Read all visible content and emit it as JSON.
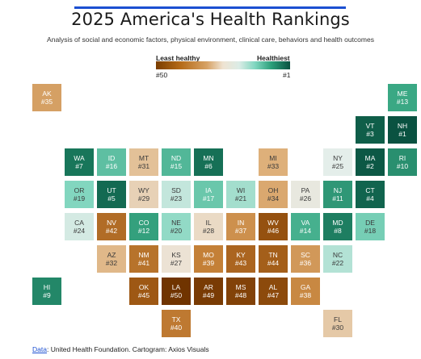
{
  "title": "2025 America's Health Rankings",
  "subtitle": "Analysis of social and economic factors, physical environment, clinical care, behaviors and health outcomes",
  "legend": {
    "left_label": "Least healthy",
    "right_label": "Healthiest",
    "left_rank": "#50",
    "right_rank": "#1"
  },
  "states": [
    {
      "abbr": "AK",
      "rank": "#35",
      "rank_value": 35,
      "row": 0,
      "col": 0
    },
    {
      "abbr": "ME",
      "rank": "#13",
      "rank_value": 13,
      "row": 0,
      "col": 11
    },
    {
      "abbr": "VT",
      "rank": "#3",
      "rank_value": 3,
      "row": 1,
      "col": 10
    },
    {
      "abbr": "NH",
      "rank": "#1",
      "rank_value": 1,
      "row": 1,
      "col": 11
    },
    {
      "abbr": "WA",
      "rank": "#7",
      "rank_value": 7,
      "row": 2,
      "col": 1
    },
    {
      "abbr": "ID",
      "rank": "#16",
      "rank_value": 16,
      "row": 2,
      "col": 2
    },
    {
      "abbr": "MT",
      "rank": "#31",
      "rank_value": 31,
      "row": 2,
      "col": 3
    },
    {
      "abbr": "ND",
      "rank": "#15",
      "rank_value": 15,
      "row": 2,
      "col": 4
    },
    {
      "abbr": "MN",
      "rank": "#6",
      "rank_value": 6,
      "row": 2,
      "col": 5
    },
    {
      "abbr": "MI",
      "rank": "#33",
      "rank_value": 33,
      "row": 2,
      "col": 7
    },
    {
      "abbr": "NY",
      "rank": "#25",
      "rank_value": 25,
      "row": 2,
      "col": 9
    },
    {
      "abbr": "MA",
      "rank": "#2",
      "rank_value": 2,
      "row": 2,
      "col": 10
    },
    {
      "abbr": "RI",
      "rank": "#10",
      "rank_value": 10,
      "row": 2,
      "col": 11
    },
    {
      "abbr": "OR",
      "rank": "#19",
      "rank_value": 19,
      "row": 3,
      "col": 1
    },
    {
      "abbr": "UT",
      "rank": "#5",
      "rank_value": 5,
      "row": 3,
      "col": 2
    },
    {
      "abbr": "WY",
      "rank": "#29",
      "rank_value": 29,
      "row": 3,
      "col": 3
    },
    {
      "abbr": "SD",
      "rank": "#23",
      "rank_value": 23,
      "row": 3,
      "col": 4
    },
    {
      "abbr": "IA",
      "rank": "#17",
      "rank_value": 17,
      "row": 3,
      "col": 5
    },
    {
      "abbr": "WI",
      "rank": "#21",
      "rank_value": 21,
      "row": 3,
      "col": 6
    },
    {
      "abbr": "OH",
      "rank": "#34",
      "rank_value": 34,
      "row": 3,
      "col": 7
    },
    {
      "abbr": "PA",
      "rank": "#26",
      "rank_value": 26,
      "row": 3,
      "col": 8
    },
    {
      "abbr": "NJ",
      "rank": "#11",
      "rank_value": 11,
      "row": 3,
      "col": 9
    },
    {
      "abbr": "CT",
      "rank": "#4",
      "rank_value": 4,
      "row": 3,
      "col": 10
    },
    {
      "abbr": "CA",
      "rank": "#24",
      "rank_value": 24,
      "row": 4,
      "col": 1
    },
    {
      "abbr": "NV",
      "rank": "#42",
      "rank_value": 42,
      "row": 4,
      "col": 2
    },
    {
      "abbr": "CO",
      "rank": "#12",
      "rank_value": 12,
      "row": 4,
      "col": 3
    },
    {
      "abbr": "NE",
      "rank": "#20",
      "rank_value": 20,
      "row": 4,
      "col": 4
    },
    {
      "abbr": "IL",
      "rank": "#28",
      "rank_value": 28,
      "row": 4,
      "col": 5
    },
    {
      "abbr": "IN",
      "rank": "#37",
      "rank_value": 37,
      "row": 4,
      "col": 6
    },
    {
      "abbr": "WV",
      "rank": "#46",
      "rank_value": 46,
      "row": 4,
      "col": 7
    },
    {
      "abbr": "VA",
      "rank": "#14",
      "rank_value": 14,
      "row": 4,
      "col": 8
    },
    {
      "abbr": "MD",
      "rank": "#8",
      "rank_value": 8,
      "row": 4,
      "col": 9
    },
    {
      "abbr": "DE",
      "rank": "#18",
      "rank_value": 18,
      "row": 4,
      "col": 10
    },
    {
      "abbr": "AZ",
      "rank": "#32",
      "rank_value": 32,
      "row": 5,
      "col": 2
    },
    {
      "abbr": "NM",
      "rank": "#41",
      "rank_value": 41,
      "row": 5,
      "col": 3
    },
    {
      "abbr": "KS",
      "rank": "#27",
      "rank_value": 27,
      "row": 5,
      "col": 4
    },
    {
      "abbr": "MO",
      "rank": "#39",
      "rank_value": 39,
      "row": 5,
      "col": 5
    },
    {
      "abbr": "KY",
      "rank": "#43",
      "rank_value": 43,
      "row": 5,
      "col": 6
    },
    {
      "abbr": "TN",
      "rank": "#44",
      "rank_value": 44,
      "row": 5,
      "col": 7
    },
    {
      "abbr": "SC",
      "rank": "#36",
      "rank_value": 36,
      "row": 5,
      "col": 8
    },
    {
      "abbr": "NC",
      "rank": "#22",
      "rank_value": 22,
      "row": 5,
      "col": 9
    },
    {
      "abbr": "HI",
      "rank": "#9",
      "rank_value": 9,
      "row": 6,
      "col": 0
    },
    {
      "abbr": "OK",
      "rank": "#45",
      "rank_value": 45,
      "row": 6,
      "col": 3
    },
    {
      "abbr": "LA",
      "rank": "#50",
      "rank_value": 50,
      "row": 6,
      "col": 4
    },
    {
      "abbr": "AR",
      "rank": "#49",
      "rank_value": 49,
      "row": 6,
      "col": 5
    },
    {
      "abbr": "MS",
      "rank": "#48",
      "rank_value": 48,
      "row": 6,
      "col": 6
    },
    {
      "abbr": "AL",
      "rank": "#47",
      "rank_value": 47,
      "row": 6,
      "col": 7
    },
    {
      "abbr": "GA",
      "rank": "#38",
      "rank_value": 38,
      "row": 6,
      "col": 8
    },
    {
      "abbr": "TX",
      "rank": "#40",
      "rank_value": 40,
      "row": 7,
      "col": 4
    },
    {
      "abbr": "FL",
      "rank": "#30",
      "rank_value": 30,
      "row": 7,
      "col": 9
    }
  ],
  "footer": {
    "link": "Data",
    "text": ": United Health Foundation. Cartogram: Axios Visuals"
  }
}
